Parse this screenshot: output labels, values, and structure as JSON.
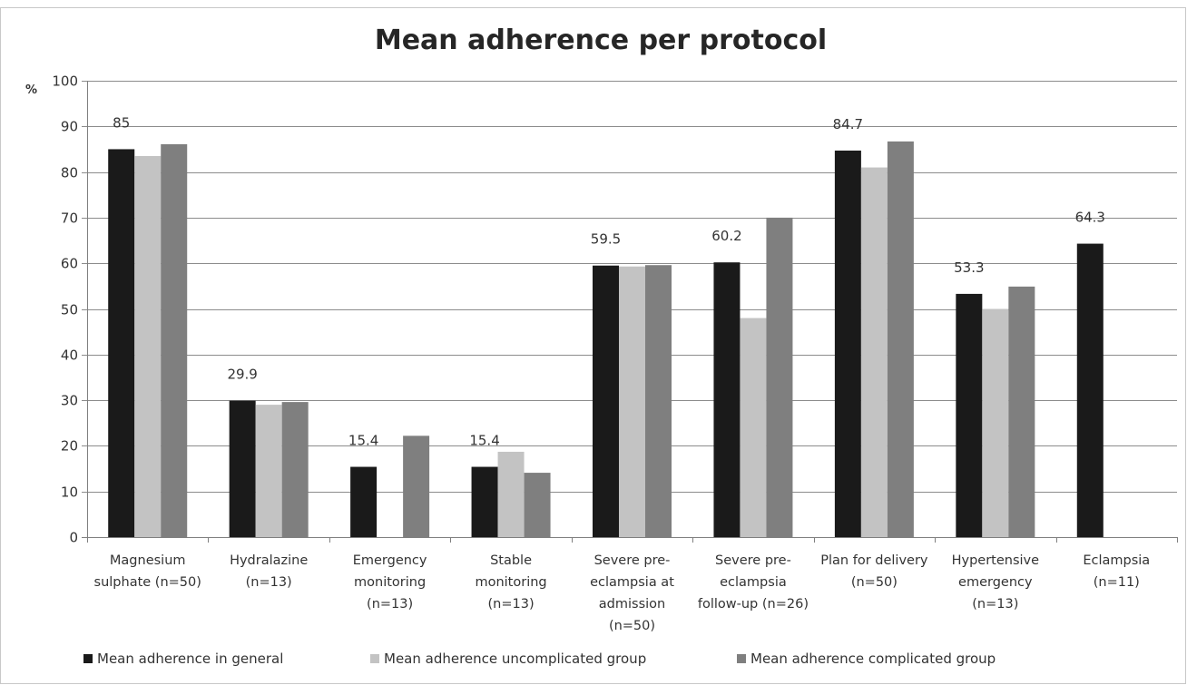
{
  "chart_data": {
    "type": "bar",
    "title": "Mean adherence per protocol",
    "ylabel": "%",
    "xlabel": "",
    "ylim": [
      0,
      100
    ],
    "yticks": [
      0,
      10,
      20,
      30,
      40,
      50,
      60,
      70,
      80,
      90,
      100
    ],
    "grid": true,
    "legend_position": "bottom",
    "categories": [
      [
        "Magnesium",
        "sulphate (n=50)"
      ],
      [
        "Hydralazine",
        "(n=13)"
      ],
      [
        "Emergency",
        "monitoring",
        "(n=13)"
      ],
      [
        "Stable",
        "monitoring",
        "(n=13)"
      ],
      [
        "Severe pre-",
        "eclampsia at",
        "admission",
        "(n=50)"
      ],
      [
        "Severe pre-",
        "eclampsia",
        "follow-up (n=26)"
      ],
      [
        "Plan for delivery",
        "(n=50)"
      ],
      [
        "Hypertensive",
        "emergency",
        "(n=13)"
      ],
      [
        "Eclampsia",
        "(n=11)"
      ]
    ],
    "series": [
      {
        "name": "Mean adherence in general",
        "color": "#1a1a1a",
        "values": [
          85,
          29.9,
          15.4,
          15.4,
          59.5,
          60.2,
          84.7,
          53.3,
          64.3
        ]
      },
      {
        "name": "Mean adherence uncomplicated group",
        "color": "#c3c3c3",
        "values": [
          83.5,
          29,
          null,
          18.7,
          59.3,
          48,
          81,
          50,
          null
        ]
      },
      {
        "name": "Mean adherence complicated group",
        "color": "#7f7f7f",
        "values": [
          86.1,
          29.6,
          22.2,
          14.1,
          59.6,
          70,
          86.7,
          54.9,
          null
        ]
      }
    ],
    "data_labels": [
      "85",
      "29.9",
      "15.4",
      "15.4",
      "59.5",
      "60.2",
      "84.7",
      "53.3",
      "64.3"
    ]
  }
}
